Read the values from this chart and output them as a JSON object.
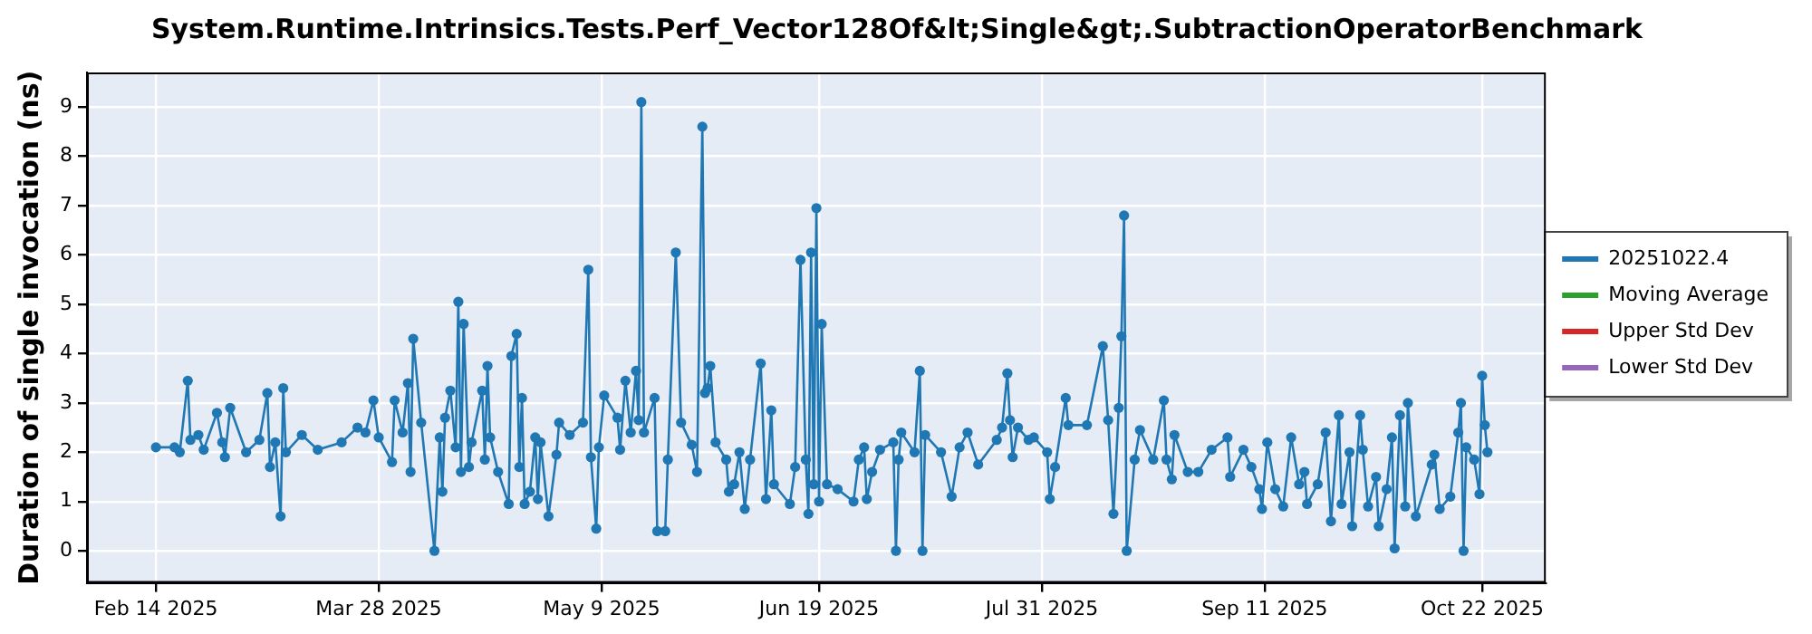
{
  "chart_data": {
    "type": "line",
    "title": "System.Runtime.Intrinsics.Tests.Perf_Vector128Of&lt;Single&gt;.SubtractionOperatorBenchmark",
    "ylabel": "Duration of single invocation (ns)",
    "xlim": [
      "2025-02-01",
      "2025-11-03"
    ],
    "xticks": [
      {
        "value": "2025-02-14",
        "label": "Feb 14 2025"
      },
      {
        "value": "2025-03-28",
        "label": "Mar 28 2025"
      },
      {
        "value": "2025-05-09",
        "label": "May 9 2025"
      },
      {
        "value": "2025-06-19",
        "label": "Jun 19 2025"
      },
      {
        "value": "2025-07-31",
        "label": "Jul 31 2025"
      },
      {
        "value": "2025-09-11",
        "label": "Sep 11 2025"
      },
      {
        "value": "2025-10-22",
        "label": "Oct 22 2025"
      }
    ],
    "ylim": [
      -0.65,
      9.7
    ],
    "yticks": [
      0,
      1,
      2,
      3,
      4,
      5,
      6,
      7,
      8,
      9
    ],
    "grid": true,
    "legend": "right",
    "marker": "circle",
    "line_style": "solid",
    "series": [
      {
        "name": "20251022.4",
        "color": "#1f77b4",
        "x": [
          "2025-02-14",
          "2025-02-17T12:00",
          "2025-02-18T12:00",
          "2025-02-20",
          "2025-02-20T12:00",
          "2025-02-22",
          "2025-02-23",
          "2025-02-25T12:00",
          "2025-02-26T12:00",
          "2025-02-27",
          "2025-02-28",
          "2025-03-03",
          "2025-03-05T12:00",
          "2025-03-07",
          "2025-03-07T12:00",
          "2025-03-08T12:00",
          "2025-03-09T12:00",
          "2025-03-10",
          "2025-03-10T12:00",
          "2025-03-13T12:00",
          "2025-03-16T12:00",
          "2025-03-21",
          "2025-03-24",
          "2025-03-25T12:00",
          "2025-03-27",
          "2025-03-28",
          "2025-03-30T12:00",
          "2025-03-31",
          "2025-04-01T12:00",
          "2025-04-02T12:00",
          "2025-04-03",
          "2025-04-03T12:00",
          "2025-04-05",
          "2025-04-07T12:00",
          "2025-04-08T12:00",
          "2025-04-09",
          "2025-04-09T12:00",
          "2025-04-10T12:00",
          "2025-04-11T12:00",
          "2025-04-12",
          "2025-04-12T12:00",
          "2025-04-13",
          "2025-04-14",
          "2025-04-14T12:00",
          "2025-04-16T12:00",
          "2025-04-17",
          "2025-04-17T12:00",
          "2025-04-18",
          "2025-04-19T12:00",
          "2025-04-21T12:00",
          "2025-04-22",
          "2025-04-23",
          "2025-04-23T12:00",
          "2025-04-24",
          "2025-04-24T12:00",
          "2025-04-25T12:00",
          "2025-04-26T12:00",
          "2025-04-27",
          "2025-04-27T12:00",
          "2025-04-29",
          "2025-04-30T12:00",
          "2025-05-01",
          "2025-05-03",
          "2025-05-05T12:00",
          "2025-05-06T12:00",
          "2025-05-07",
          "2025-05-08",
          "2025-05-08T12:00",
          "2025-05-09T12:00",
          "2025-05-12",
          "2025-05-12T12:00",
          "2025-05-13T12:00",
          "2025-05-14T12:00",
          "2025-05-15T12:00",
          "2025-05-16",
          "2025-05-16T12:00",
          "2025-05-17",
          "2025-05-19",
          "2025-05-19T12:00",
          "2025-05-21",
          "2025-05-21T12:00",
          "2025-05-23",
          "2025-05-24",
          "2025-05-26",
          "2025-05-27",
          "2025-05-28",
          "2025-05-28T12:00",
          "2025-05-29",
          "2025-05-29T12:00",
          "2025-05-30T12:00",
          "2025-06-01T12:00",
          "2025-06-02",
          "2025-06-03",
          "2025-06-04",
          "2025-06-05",
          "2025-06-06",
          "2025-06-08",
          "2025-06-09",
          "2025-06-10",
          "2025-06-10T12:00",
          "2025-06-13T12:00",
          "2025-06-14T12:00",
          "2025-06-15T12:00",
          "2025-06-16T12:00",
          "2025-06-17",
          "2025-06-17T12:00",
          "2025-06-18",
          "2025-06-18T12:00",
          "2025-06-19",
          "2025-06-19T12:00",
          "2025-06-20T12:00",
          "2025-06-22T12:00",
          "2025-06-25T12:00",
          "2025-06-26T12:00",
          "2025-06-27T12:00",
          "2025-06-28",
          "2025-06-29",
          "2025-06-30T12:00",
          "2025-07-03",
          "2025-07-03T12:00",
          "2025-07-04",
          "2025-07-04T12:00",
          "2025-07-07",
          "2025-07-08",
          "2025-07-08T12:00",
          "2025-07-09",
          "2025-07-12",
          "2025-07-14",
          "2025-07-15T12:00",
          "2025-07-17",
          "2025-07-19",
          "2025-07-22T12:00",
          "2025-07-23T12:00",
          "2025-07-24T12:00",
          "2025-07-25",
          "2025-07-25T12:00",
          "2025-07-26T12:00",
          "2025-07-28T12:00",
          "2025-07-29T12:00",
          "2025-08-01",
          "2025-08-01T12:00",
          "2025-08-02T12:00",
          "2025-08-04T12:00",
          "2025-08-05",
          "2025-08-08T12:00",
          "2025-08-11T12:00",
          "2025-08-12T12:00",
          "2025-08-13T12:00",
          "2025-08-14T12:00",
          "2025-08-15",
          "2025-08-15T12:00",
          "2025-08-16",
          "2025-08-17T12:00",
          "2025-08-18T12:00",
          "2025-08-21",
          "2025-08-23",
          "2025-08-23T12:00",
          "2025-08-24T12:00",
          "2025-08-25",
          "2025-08-27T12:00",
          "2025-08-29T12:00",
          "2025-09-01",
          "2025-09-04",
          "2025-09-04T12:00",
          "2025-09-07",
          "2025-09-08T12:00",
          "2025-09-10",
          "2025-09-10T12:00",
          "2025-09-11T12:00",
          "2025-09-13",
          "2025-09-14T12:00",
          "2025-09-16",
          "2025-09-17T12:00",
          "2025-09-18T12:00",
          "2025-09-19",
          "2025-09-21",
          "2025-09-22T12:00",
          "2025-09-23T12:00",
          "2025-09-25",
          "2025-09-25T12:00",
          "2025-09-27",
          "2025-09-27T12:00",
          "2025-09-29",
          "2025-09-29T12:00",
          "2025-09-30T12:00",
          "2025-10-02",
          "2025-10-02T12:00",
          "2025-10-04",
          "2025-10-05",
          "2025-10-05T12:00",
          "2025-10-06T12:00",
          "2025-10-07T12:00",
          "2025-10-08",
          "2025-10-09T12:00",
          "2025-10-12T12:00",
          "2025-10-13",
          "2025-10-14",
          "2025-10-16",
          "2025-10-17T12:00",
          "2025-10-18",
          "2025-10-18T12:00",
          "2025-10-19",
          "2025-10-20T12:00",
          "2025-10-21T12:00",
          "2025-10-22",
          "2025-10-22T12:00",
          "2025-10-23"
        ],
        "values": [
          2.1,
          2.1,
          2.0,
          3.45,
          2.25,
          2.35,
          2.05,
          2.8,
          2.2,
          1.9,
          2.9,
          2.0,
          2.25,
          3.2,
          1.7,
          2.2,
          0.7,
          3.3,
          2.0,
          2.35,
          2.05,
          2.2,
          2.5,
          2.4,
          3.05,
          2.3,
          1.8,
          3.05,
          2.4,
          3.4,
          1.6,
          4.3,
          2.6,
          0.0,
          2.3,
          1.2,
          2.7,
          3.25,
          2.1,
          5.05,
          1.6,
          4.6,
          1.7,
          2.2,
          3.25,
          1.85,
          3.75,
          2.3,
          1.6,
          0.95,
          3.95,
          4.4,
          1.7,
          3.1,
          0.95,
          1.2,
          2.3,
          1.05,
          2.2,
          0.7,
          1.95,
          2.6,
          2.35,
          2.6,
          5.7,
          1.9,
          0.45,
          2.1,
          3.15,
          2.7,
          2.05,
          3.45,
          2.4,
          3.65,
          2.65,
          9.1,
          2.4,
          3.1,
          0.4,
          0.4,
          1.85,
          6.05,
          2.6,
          2.15,
          1.6,
          8.6,
          3.2,
          3.3,
          3.75,
          2.2,
          1.85,
          1.2,
          1.35,
          2.0,
          0.85,
          1.85,
          3.8,
          1.05,
          2.85,
          1.35,
          0.95,
          1.7,
          5.9,
          1.85,
          0.75,
          6.05,
          1.35,
          6.95,
          1.0,
          4.6,
          1.35,
          1.25,
          1.0,
          1.85,
          2.1,
          1.05,
          1.6,
          2.05,
          2.2,
          0.0,
          1.85,
          2.4,
          2.0,
          3.65,
          0.0,
          2.35,
          2.0,
          1.1,
          2.1,
          2.4,
          1.75,
          2.25,
          2.5,
          3.6,
          2.65,
          1.9,
          2.5,
          2.25,
          2.3,
          2.0,
          1.05,
          1.7,
          3.1,
          2.55,
          2.55,
          4.15,
          2.65,
          0.75,
          2.9,
          4.35,
          6.8,
          0.0,
          1.85,
          2.45,
          1.85,
          3.05,
          1.85,
          1.45,
          2.35,
          1.6,
          1.6,
          2.05,
          2.3,
          1.5,
          2.05,
          1.7,
          1.25,
          0.85,
          2.2,
          1.25,
          0.9,
          2.3,
          1.35,
          1.6,
          0.95,
          1.35,
          2.4,
          0.6,
          2.75,
          0.95,
          2.0,
          0.5,
          2.75,
          2.05,
          0.9,
          1.5,
          0.5,
          1.25,
          2.3,
          0.05,
          2.75,
          0.9,
          3.0,
          0.7,
          1.75,
          1.95,
          0.85,
          1.1,
          2.4,
          3.0,
          0.0,
          2.1,
          1.85,
          1.15,
          3.55,
          2.55,
          2.0
        ]
      },
      {
        "name": "Moving Average",
        "color": "#2ca02c"
      },
      {
        "name": "Upper Std Dev",
        "color": "#d62728"
      },
      {
        "name": "Lower Std Dev",
        "color": "#9467bd"
      }
    ]
  }
}
